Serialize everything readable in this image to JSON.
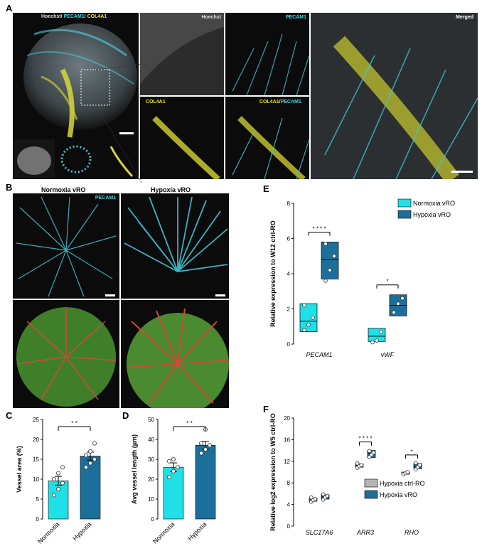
{
  "panels": {
    "a": {
      "letter": "A",
      "overview_label": {
        "hoechst": "Hoechst",
        "sep1": "/ ",
        "pecam1": "PECAM1",
        "sep2": "/ ",
        "col4a1": "COL4A1"
      },
      "tiles": {
        "hoechst": "Hoechst",
        "pecam1": "PECAM1",
        "col4a1": "COL4A1",
        "merge_col": "COL4A1",
        "merge_sep": "/",
        "merge_pec": "PECAM1",
        "merged": "Merged"
      }
    },
    "b": {
      "letter": "B",
      "normoxia_title": "Normoxia vRO",
      "hypoxia_title": "Hypoxia vRO",
      "channel_label": "PECAM1"
    },
    "c": {
      "letter": "C"
    },
    "d": {
      "letter": "D"
    },
    "e": {
      "letter": "E"
    },
    "f": {
      "letter": "F"
    }
  },
  "colors": {
    "normoxia": "#1fe0e6",
    "hypoxia": "#1b6f9a",
    "ctrl": "#b5b5b5",
    "cyan_label": "#3fd6e6",
    "yellow_label": "#f2e600",
    "vessel_red": "#d9463a",
    "tissue_green": "#3f9a2e"
  },
  "chart_data": [
    {
      "id": "C",
      "type": "bar",
      "categories": [
        "Normoxia",
        "Hypoxia"
      ],
      "values": [
        9.6,
        15.8
      ],
      "errors": [
        1.1,
        1.0
      ],
      "points": [
        [
          6,
          7.5,
          9,
          10,
          11.5,
          13
        ],
        [
          13,
          14,
          15,
          16,
          17,
          19
        ]
      ],
      "ylabel": "Vessel area (%)",
      "ylim": [
        0,
        25
      ],
      "yticks": [
        0,
        5,
        10,
        15,
        20,
        25
      ],
      "significance": "* *"
    },
    {
      "id": "D",
      "type": "bar",
      "categories": [
        "Normoxia",
        "Hypoxia"
      ],
      "values": [
        26,
        37
      ],
      "errors": [
        2.2,
        2.0
      ],
      "points": [
        [
          21,
          24,
          26,
          29,
          30
        ],
        [
          33,
          35,
          37,
          38,
          45
        ]
      ],
      "ylabel": "Avg vessel length (µm)",
      "ylim": [
        0,
        50
      ],
      "yticks": [
        0,
        10,
        20,
        30,
        40,
        50
      ],
      "significance": "* *"
    },
    {
      "id": "E",
      "type": "box",
      "categories": [
        "PECAM1",
        "vWF"
      ],
      "series": [
        {
          "name": "Normoxia vRO",
          "boxes": [
            {
              "low": 0.7,
              "mid": 1.3,
              "high": 2.3,
              "points": [
                0.8,
                1.1,
                1.5,
                2.2
              ]
            },
            {
              "low": 0.15,
              "mid": 0.45,
              "high": 0.9,
              "points": [
                0.1,
                0.2,
                0.7
              ]
            }
          ]
        },
        {
          "name": "Hypoxia vRO",
          "boxes": [
            {
              "low": 3.7,
              "mid": 4.8,
              "high": 5.8,
              "points": [
                3.6,
                4.2,
                5.0,
                5.7
              ]
            },
            {
              "low": 1.6,
              "mid": 2.2,
              "high": 2.8,
              "points": [
                1.8,
                2.3,
                2.6
              ]
            }
          ]
        }
      ],
      "ylabel": "Relative expression to W12 ctrl-RO",
      "ylim": [
        0,
        8
      ],
      "yticks": [
        0,
        2,
        4,
        6,
        8
      ],
      "significance": [
        "* * * *",
        "*"
      ],
      "legend_position": "top-right"
    },
    {
      "id": "F",
      "type": "box",
      "categories": [
        "SLC17A6",
        "ARR3",
        "RHO"
      ],
      "series": [
        {
          "name": "Hypoxia ctrl-RO",
          "boxes": [
            {
              "low": 4.6,
              "mid": 4.9,
              "high": 5.2,
              "points": [
                4.5,
                4.8,
                5.0,
                5.3
              ]
            },
            {
              "low": 10.9,
              "mid": 11.2,
              "high": 11.5,
              "points": [
                10.8,
                11.1,
                11.3,
                11.6
              ]
            },
            {
              "low": 9.6,
              "mid": 9.8,
              "high": 10.0,
              "points": [
                9.6,
                9.8,
                10.0
              ]
            }
          ]
        },
        {
          "name": "Hypoxia vRO",
          "boxes": [
            {
              "low": 5.0,
              "mid": 5.4,
              "high": 5.8,
              "points": [
                4.9,
                5.3,
                5.6,
                5.9
              ]
            },
            {
              "low": 12.7,
              "mid": 13.4,
              "high": 14.0,
              "points": [
                12.8,
                13.2,
                13.6,
                13.9
              ]
            },
            {
              "low": 10.6,
              "mid": 11.1,
              "high": 11.6,
              "points": [
                10.5,
                10.9,
                11.3,
                11.7
              ]
            }
          ]
        }
      ],
      "ylabel": "Relative log2 expression to W5 ctrl-RO",
      "ylim": [
        0,
        20
      ],
      "yticks": [
        0,
        4,
        8,
        12,
        16,
        20
      ],
      "significance": [
        "",
        "* * * *",
        "*"
      ],
      "legend_position": "bottom-right"
    }
  ]
}
